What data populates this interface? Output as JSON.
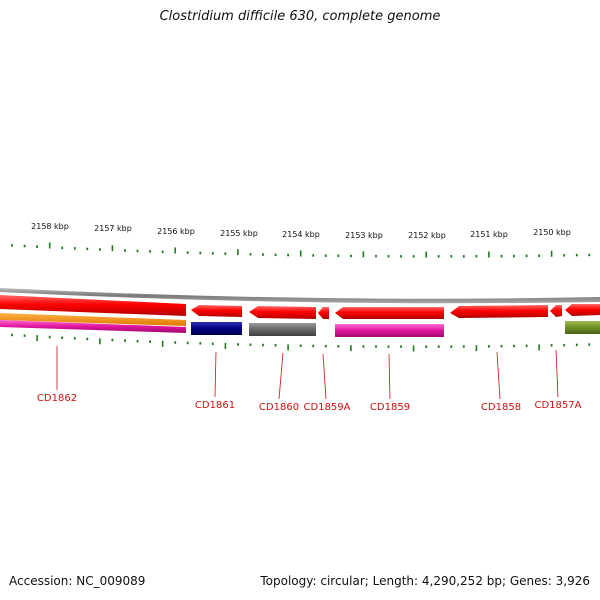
{
  "title": "Clostridium difficile 630, complete genome",
  "footer": {
    "accession": "Accession: NC_009089",
    "summary": "Topology: circular; Length: 4,290,252 bp; Genes: 3,926"
  },
  "scale_labels": [
    "2158 kbp",
    "2157 kbp",
    "2156 kbp",
    "2155 kbp",
    "2154 kbp",
    "2153 kbp",
    "2152 kbp",
    "2151 kbp",
    "2150 kbp"
  ],
  "gene_labels": [
    "CD1862",
    "CD1861",
    "CD1860",
    "CD1859A",
    "CD1859",
    "CD1858",
    "CD1857A"
  ],
  "colors": {
    "backbone": "#8a8a8a",
    "cds": "#ff0000",
    "ticks": "#1e7a1e",
    "labels": "#cc1111",
    "navy": "#000080",
    "gray": "#666666",
    "magenta": "#e0159e",
    "orange": "#ff8c00",
    "olive": "#6b8e23"
  }
}
